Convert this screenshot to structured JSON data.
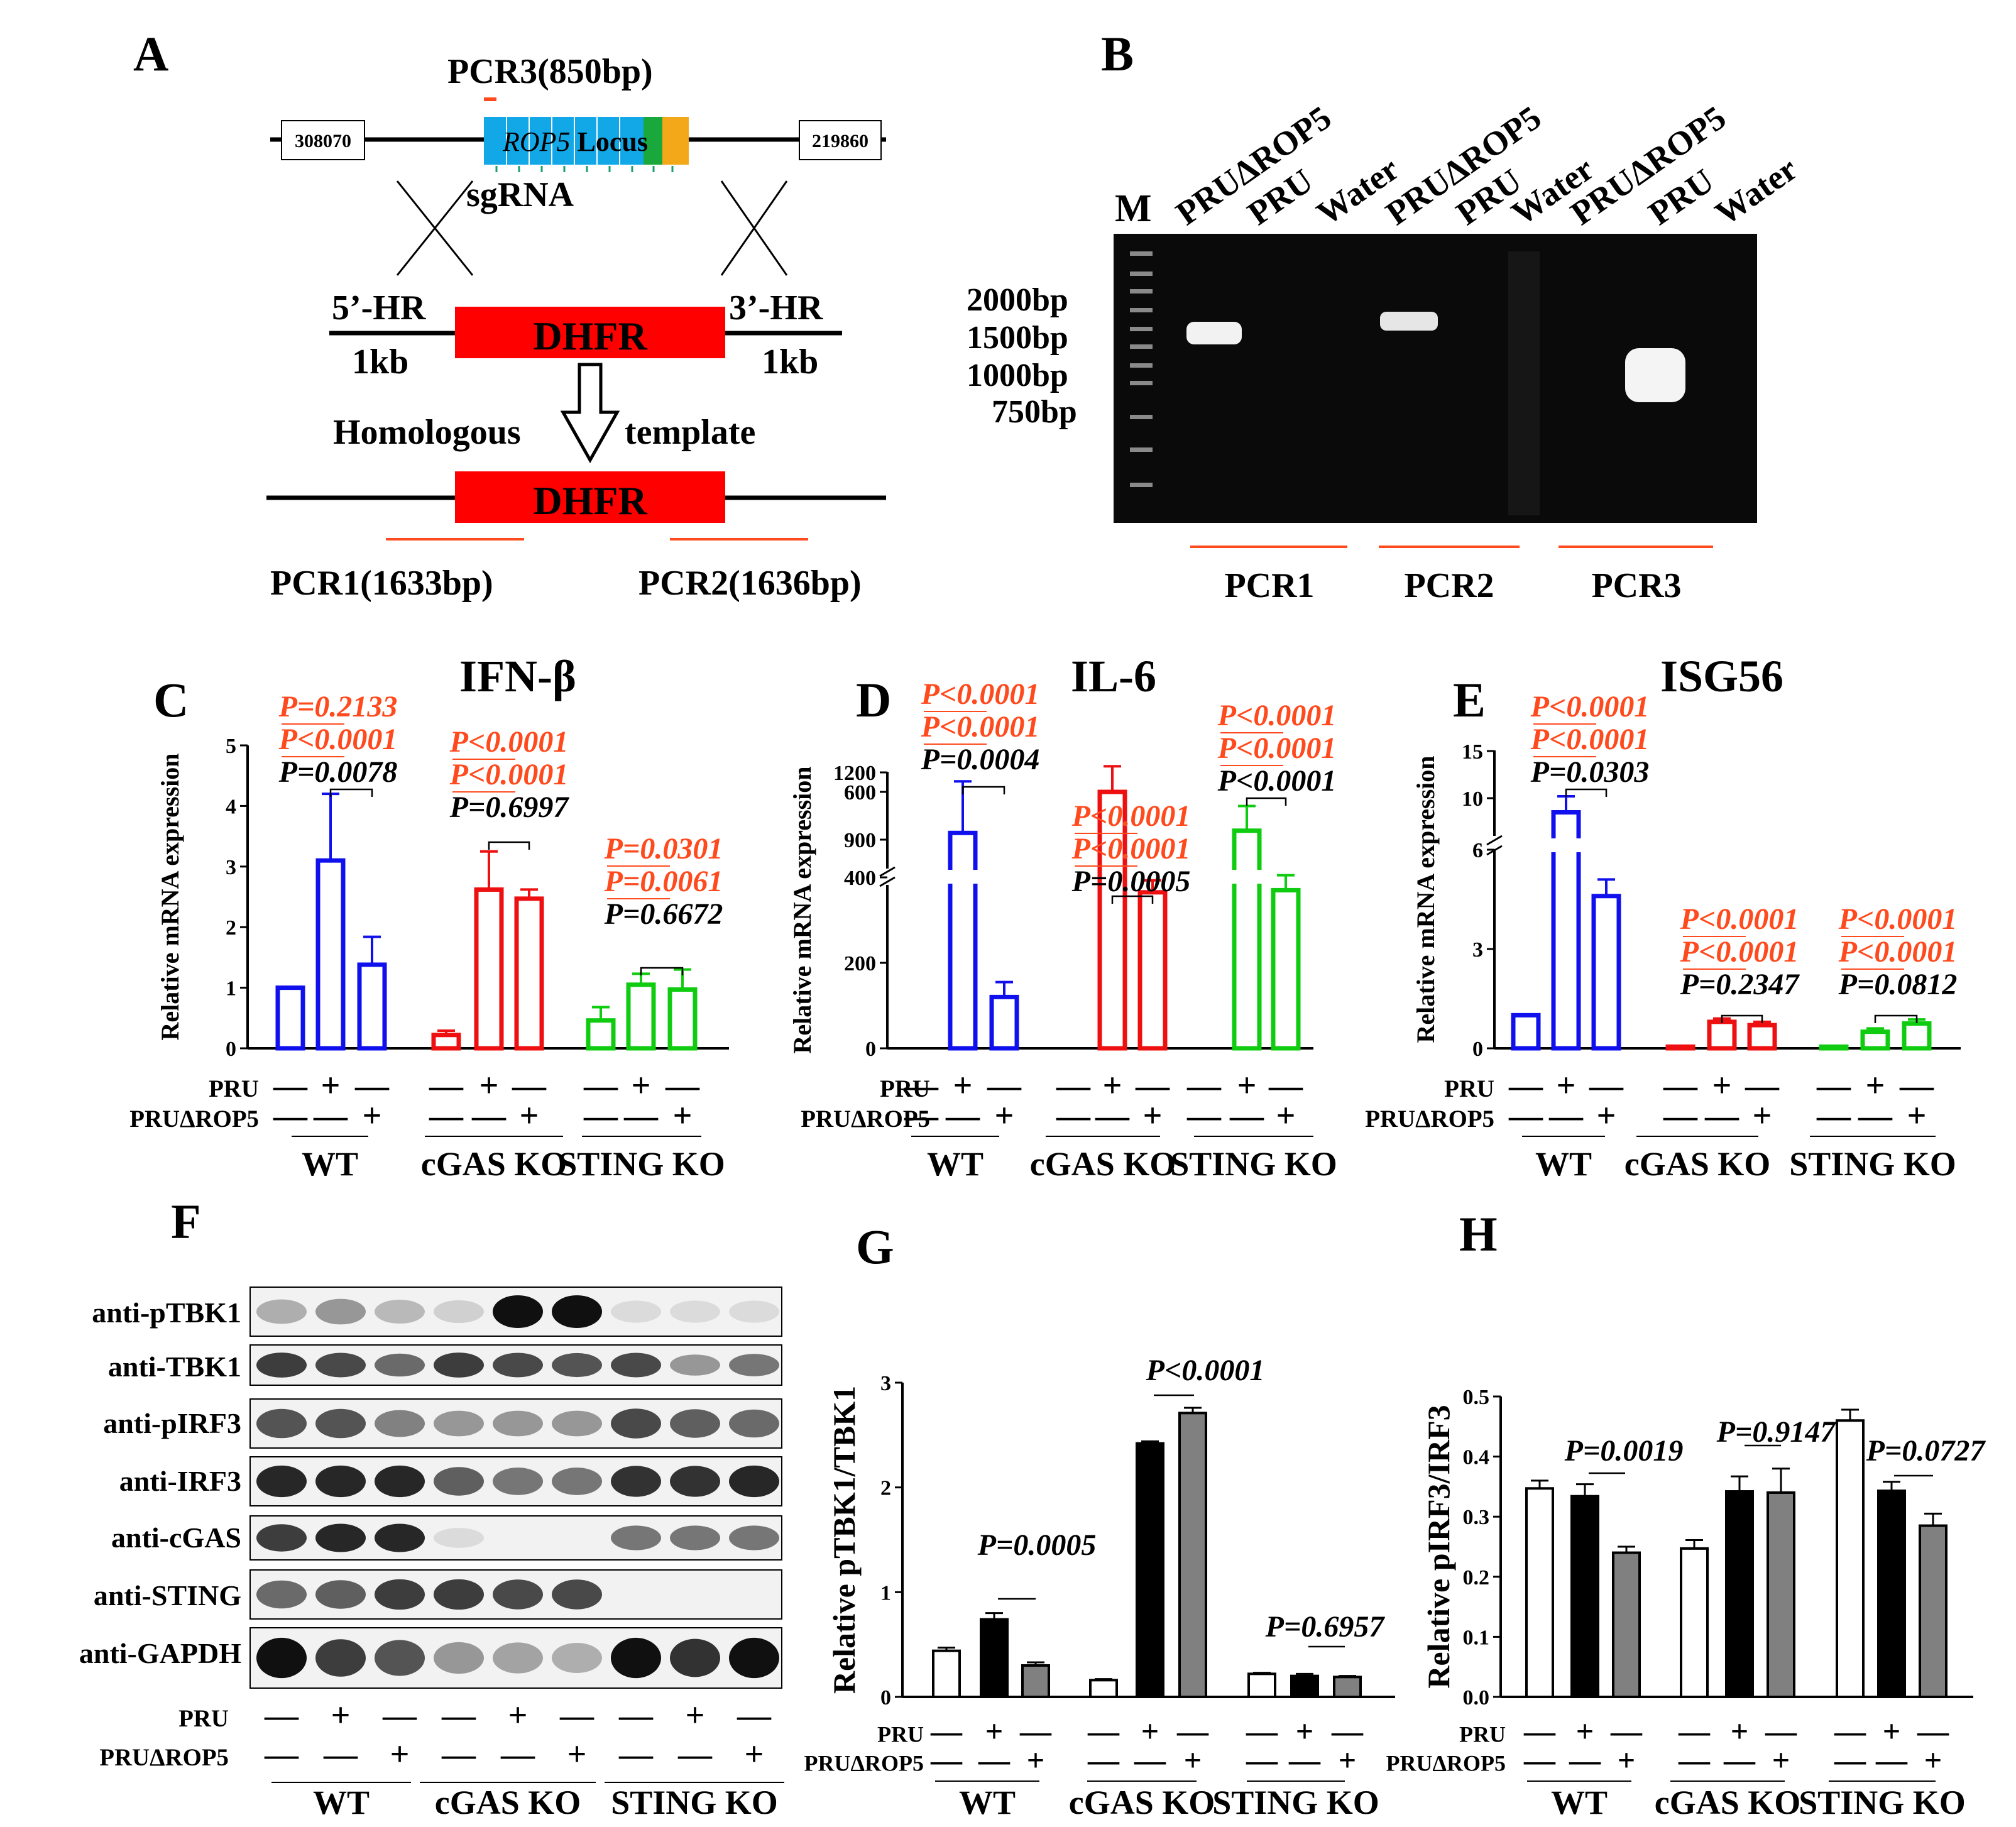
{
  "panel_labels": {
    "A": "A",
    "B": "B",
    "C": "C",
    "D": "D",
    "E": "E",
    "F": "F",
    "G": "G",
    "H": "H"
  },
  "panelA": {
    "pcr3": "PCR3(850bp)",
    "left_box": "308070",
    "right_box": "219860",
    "locus_italic": "ROP5",
    "locus_rest": " Locus",
    "sgrna": "sgRNA",
    "hr5": "5’-HR",
    "hr3": "3’-HR",
    "kb_left": "1kb",
    "kb_right": "1kb",
    "dhfr": "DHFR",
    "homologous": "Homologous",
    "template": "template",
    "dhfr2": "DHFR",
    "pcr1": "PCR1(1633bp)",
    "pcr2": "PCR2(1636bp)"
  },
  "panelB": {
    "m": "M",
    "lanes": [
      "PRUΔROP5",
      "PRU",
      "Water",
      "PRUΔROP5",
      "PRU",
      "Water",
      "PRUΔROP5",
      "PRU",
      "Water"
    ],
    "ladder": [
      "2000bp",
      "1500bp",
      "1000bp",
      "750bp"
    ],
    "groups": [
      "PCR1",
      "PCR2",
      "PCR3"
    ]
  },
  "rows": {
    "pru": "PRU",
    "pru_rop5": "PRUΔROP5",
    "plus": "+",
    "minus": "—",
    "groups": [
      "WT",
      "cGAS KO",
      "STING KO"
    ]
  },
  "panelF": {
    "blots": [
      "anti-pTBK1",
      "anti-TBK1",
      "anti-pIRF3",
      "anti-IRF3",
      "anti-cGAS",
      "anti-STING",
      "anti-GAPDH"
    ]
  },
  "chart_data": [
    {
      "panel": "C",
      "type": "bar",
      "title": "IFN-β",
      "ylabel": "Relative mRNA expression",
      "ylim": [
        0,
        5
      ],
      "yticks": [
        "0",
        "1",
        "2",
        "3",
        "4",
        "5"
      ],
      "groups": [
        "WT",
        "cGAS KO",
        "STING KO"
      ],
      "colors": [
        "#1010ee",
        "#ee1010",
        "#10cc10"
      ],
      "values": [
        1.0,
        3.1,
        1.38,
        0.22,
        2.62,
        2.47,
        0.46,
        1.05,
        0.97
      ],
      "errors": [
        0.0,
        1.1,
        0.46,
        0.07,
        0.63,
        0.15,
        0.22,
        0.18,
        0.33
      ],
      "p_values": [
        [
          "P=0.2133",
          "P<0.0001",
          "P=0.0078"
        ],
        [
          "P<0.0001",
          "P<0.0001",
          "P=0.6997"
        ],
        [
          "P=0.0301",
          "P=0.0061",
          "P=0.6672"
        ]
      ]
    },
    {
      "panel": "D",
      "type": "bar",
      "title": "IL-6",
      "ylabel": "Relative mRNA expression",
      "ylim": [
        0,
        1200
      ],
      "axis_break": [
        700,
        800
      ],
      "yticks": [
        "0",
        "200",
        "400",
        "600",
        "900",
        "1200"
      ],
      "groups": [
        "WT",
        "cGAS KO",
        "STING KO"
      ],
      "colors": [
        "#1010ee",
        "#ee1010",
        "#10cc10"
      ],
      "values": [
        0,
        930,
        120,
        0,
        600,
        365,
        0,
        940,
        370
      ],
      "errors": [
        0,
        230,
        35,
        0,
        60,
        28,
        0,
        110,
        35
      ],
      "p_values": [
        [
          "P<0.0001",
          "P<0.0001",
          "P=0.0004"
        ],
        [
          "P<0.0001",
          "P<0.0001",
          "P=0.0005"
        ],
        [
          "P<0.0001",
          "P<0.0001",
          "P<0.0001"
        ]
      ]
    },
    {
      "panel": "E",
      "type": "bar",
      "title": "ISG56",
      "ylabel": "Relative mRNA expression",
      "ylim": [
        0,
        15
      ],
      "axis_break": [
        6,
        8
      ],
      "yticks": [
        "0",
        "3",
        "6",
        "10",
        "15"
      ],
      "groups": [
        "WT",
        "cGAS KO",
        "STING KO"
      ],
      "colors": [
        "#1010ee",
        "#ee1010",
        "#10cc10"
      ],
      "values": [
        1.0,
        8.5,
        4.6,
        0.05,
        0.8,
        0.7,
        0.05,
        0.5,
        0.75
      ],
      "errors": [
        0.0,
        1.7,
        0.5,
        0.02,
        0.1,
        0.1,
        0.02,
        0.1,
        0.12
      ],
      "p_values": [
        [
          "P<0.0001",
          "P<0.0001",
          "P=0.0303"
        ],
        [
          "P<0.0001",
          "P<0.0001",
          "P=0.2347"
        ],
        [
          "P<0.0001",
          "P<0.0001",
          "P=0.0812"
        ]
      ]
    },
    {
      "panel": "G",
      "type": "bar",
      "title": "",
      "ylabel": "Relative pTBK1/TBK1",
      "ylim": [
        0,
        3
      ],
      "yticks": [
        "0",
        "1",
        "2",
        "3"
      ],
      "groups": [
        "WT",
        "cGAS KO",
        "STING KO"
      ],
      "fills": [
        "#ffffff",
        "#000000",
        "#808080"
      ],
      "values": [
        0.44,
        0.74,
        0.3,
        0.16,
        2.42,
        2.71,
        0.22,
        0.2,
        0.19
      ],
      "errors": [
        0.03,
        0.06,
        0.03,
        0.01,
        0.02,
        0.05,
        0.01,
        0.02,
        0.01
      ],
      "p_values": [
        "P=0.0005",
        "P<0.0001",
        "P=0.6957"
      ]
    },
    {
      "panel": "H",
      "type": "bar",
      "title": "",
      "ylabel": "Relative pIRF3/IRF3",
      "ylim": [
        0,
        0.5
      ],
      "yticks": [
        "0.0",
        "0.1",
        "0.2",
        "0.3",
        "0.4",
        "0.5"
      ],
      "groups": [
        "WT",
        "cGAS KO",
        "STING KO"
      ],
      "fills": [
        "#ffffff",
        "#000000",
        "#808080"
      ],
      "values": [
        0.347,
        0.334,
        0.24,
        0.247,
        0.342,
        0.34,
        0.46,
        0.343,
        0.285
      ],
      "errors": [
        0.013,
        0.02,
        0.01,
        0.014,
        0.025,
        0.04,
        0.018,
        0.015,
        0.02
      ],
      "p_values": [
        "P=0.0019",
        "P=0.9147",
        "P=0.0727"
      ]
    }
  ]
}
